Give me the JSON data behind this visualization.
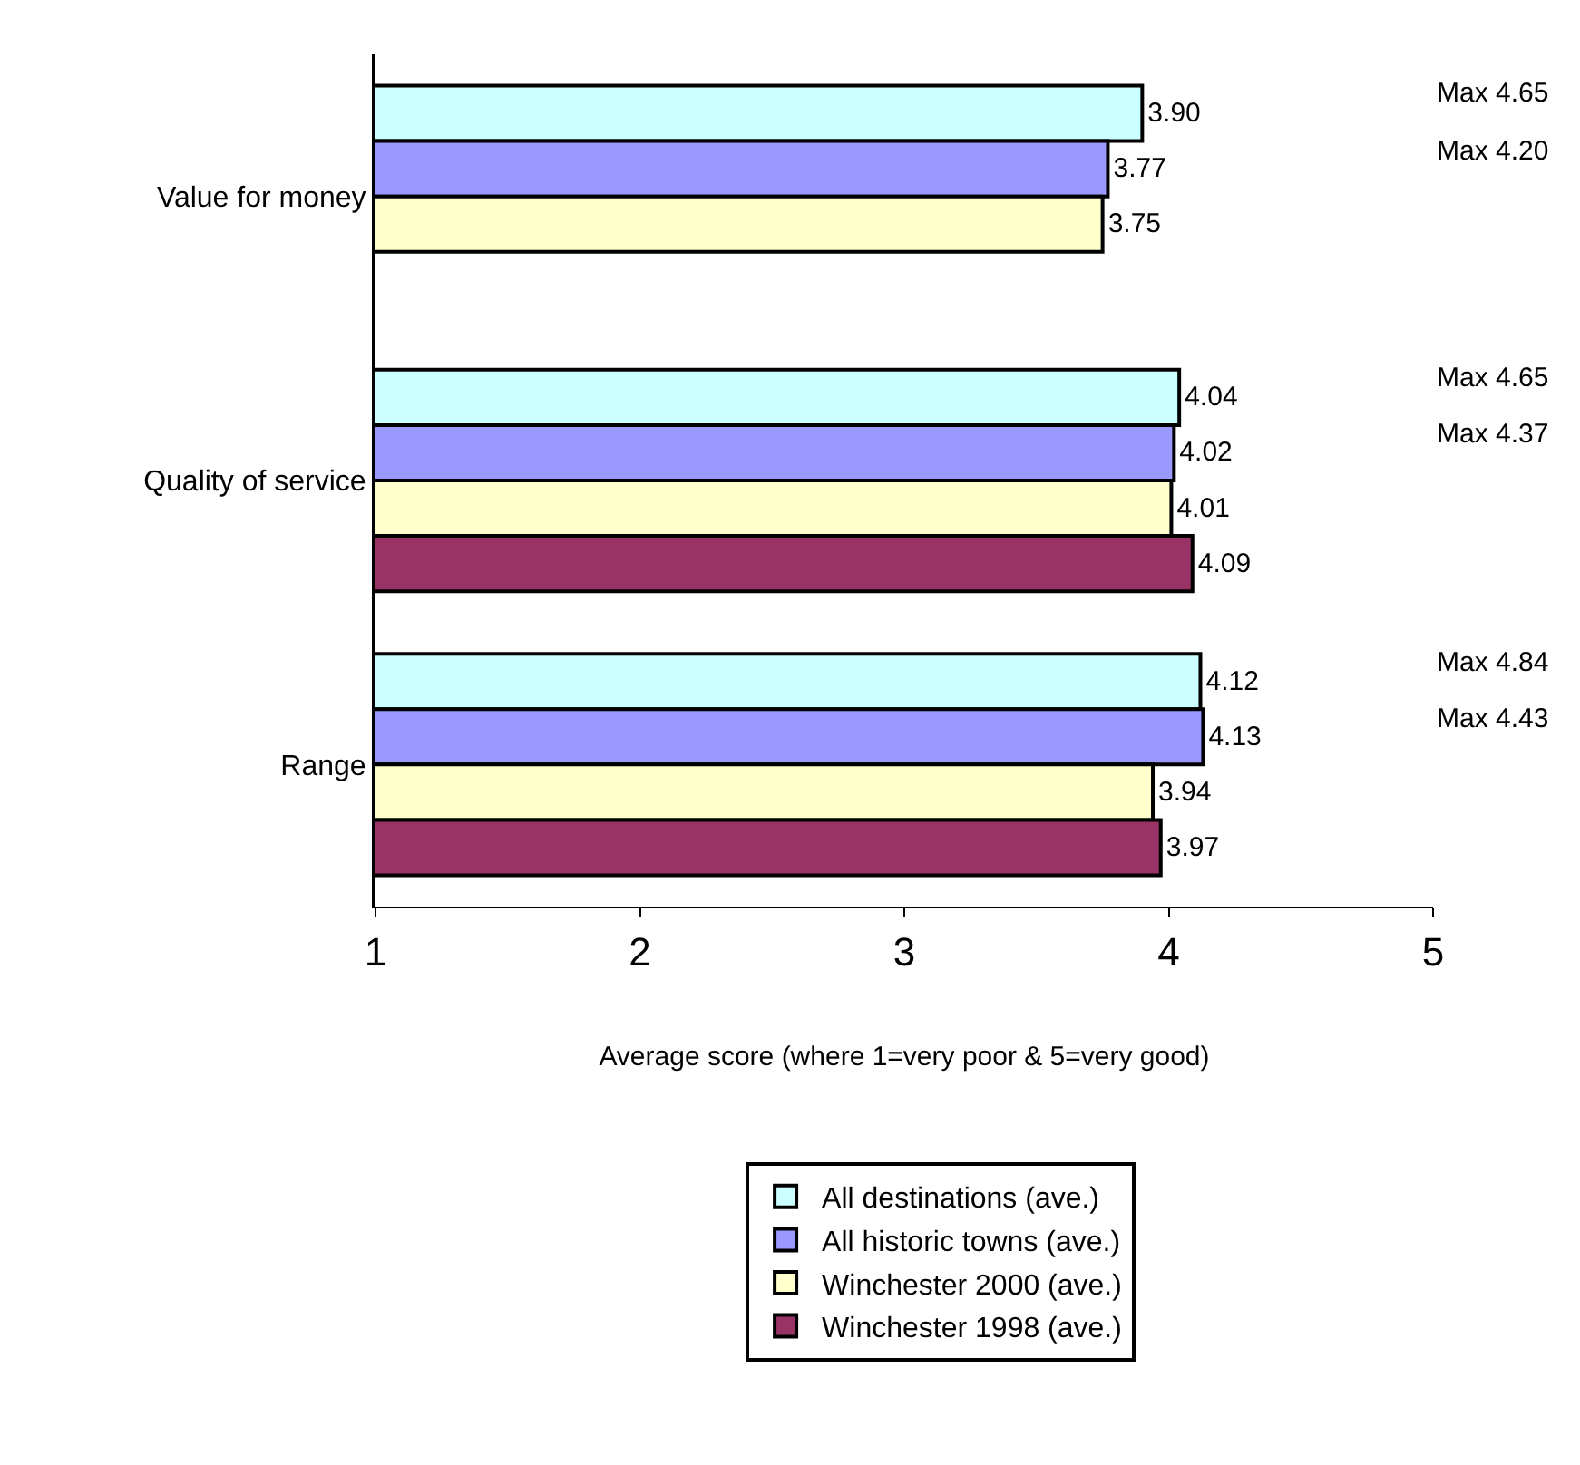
{
  "chart_data": {
    "type": "bar",
    "orientation": "horizontal",
    "xlabel": "Average score (where 1=very poor & 5=very good)",
    "categories": [
      "Value for money",
      "Quality of service",
      "Range"
    ],
    "series": [
      {
        "name": "All destinations (ave.)",
        "color": "#ccffff",
        "values": [
          3.9,
          4.04,
          4.12
        ],
        "value_labels": [
          "3.90",
          "4.04",
          "4.12"
        ]
      },
      {
        "name": "All historic towns (ave.)",
        "color": "#9999ff",
        "values": [
          3.77,
          4.02,
          4.13
        ],
        "value_labels": [
          "3.77",
          "4.02",
          "4.13"
        ]
      },
      {
        "name": "Winchester 2000 (ave.)",
        "color": "#ffffcc",
        "values": [
          3.75,
          4.01,
          3.94
        ],
        "value_labels": [
          "3.75",
          "4.01",
          "3.94"
        ]
      },
      {
        "name": "Winchester 1998 (ave.)",
        "color": "#993366",
        "values": [
          null,
          4.09,
          3.97
        ],
        "value_labels": [
          null,
          "4.09",
          "3.97"
        ]
      }
    ],
    "xlim": [
      1,
      5
    ],
    "xticks": [
      1,
      2,
      3,
      4,
      5
    ],
    "legend": "bottom",
    "annotations": [
      "Max 4.65",
      "Max 4.20",
      "Max 4.65",
      "Max 4.37",
      "Max 4.84",
      "Max 4.43"
    ]
  }
}
